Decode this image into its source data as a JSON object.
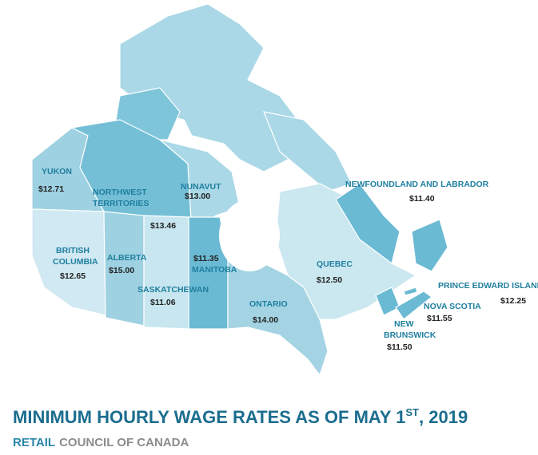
{
  "map": {
    "provinces": [
      {
        "name": [
          "YUKON"
        ],
        "wage": "$12.71"
      },
      {
        "name": [
          "NORTHWEST",
          "TERRITORIES"
        ],
        "wage": "$13.46"
      },
      {
        "name": [
          "NUNAVUT"
        ],
        "wage": "$13.00"
      },
      {
        "name": [
          "NEWFOUNDLAND AND LABRADOR"
        ],
        "wage": "$11.40"
      },
      {
        "name": [
          "BRITISH",
          "COLUMBIA"
        ],
        "wage": "$12.65"
      },
      {
        "name": [
          "ALBERTA"
        ],
        "wage": "$15.00"
      },
      {
        "name": [
          "MANITOBA"
        ],
        "wage": "$11.35"
      },
      {
        "name": [
          "SASKATCHEWAN"
        ],
        "wage": "$11.06"
      },
      {
        "name": [
          "QUEBEC"
        ],
        "wage": "$12.50"
      },
      {
        "name": [
          "ONTARIO"
        ],
        "wage": "$14.00"
      },
      {
        "name": [
          "PRINCE EDWARD ISLAND"
        ],
        "wage": "$12.25"
      },
      {
        "name": [
          "NOVA SCOTIA"
        ],
        "wage": "$11.55"
      },
      {
        "name": [
          "NEW",
          "BRUNSWICK"
        ],
        "wage": "$11.50"
      }
    ]
  },
  "footer": {
    "title": "MINIMUM HOURLY WAGE RATES AS OF MAY 1",
    "title_sup": "ST",
    "title_end": ", 2019",
    "org_highlight": "RETAIL",
    "org_rest": "COUNCIL OF CANADA"
  }
}
